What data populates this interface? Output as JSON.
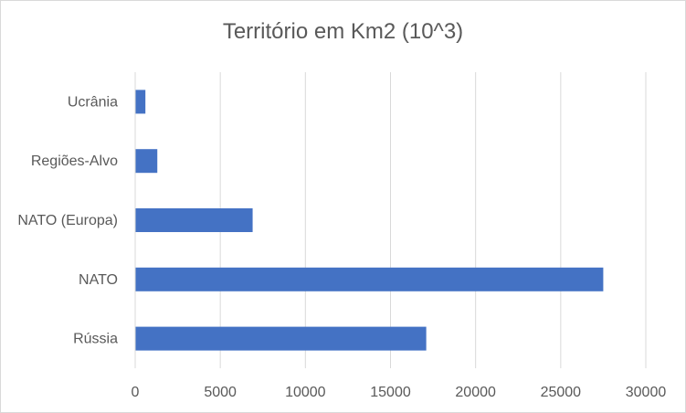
{
  "chart_data": {
    "type": "bar",
    "orientation": "horizontal",
    "title": "Território em Km2 (10^3)",
    "categories": [
      "Ucrânia",
      "Regiões-Alvo",
      "NATO (Europa)",
      "NATO",
      "Rússia"
    ],
    "values": [
      600,
      1300,
      6900,
      27500,
      17100
    ],
    "xlim": [
      0,
      30000
    ],
    "x_ticks": [
      0,
      5000,
      10000,
      15000,
      20000,
      25000,
      30000
    ],
    "x_tick_labels": [
      "0",
      "5000",
      "10000",
      "15000",
      "20000",
      "25000",
      "30000"
    ],
    "xlabel": "",
    "ylabel": "",
    "grid": "vertical",
    "legend": "none",
    "bar_color": "#4472C4",
    "grid_color": "#d9d9d9",
    "text_color": "#595959"
  }
}
